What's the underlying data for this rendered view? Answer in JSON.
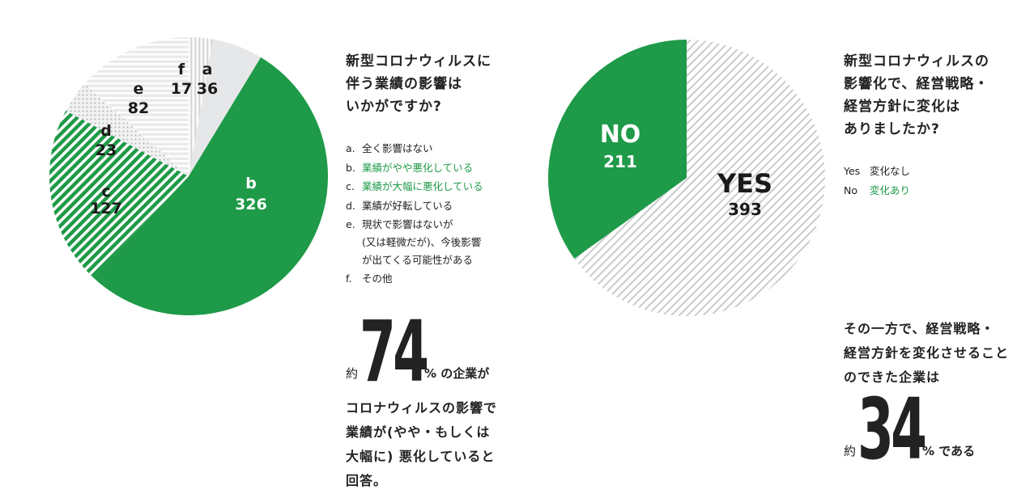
{
  "left": {
    "question": "新型コロナウィルスに\n伴う業績の影響は\nいかがですか?",
    "options": [
      {
        "key": "a.",
        "text": "全く影響はない",
        "highlight": false
      },
      {
        "key": "b.",
        "text": "業績がやや悪化している",
        "highlight": true
      },
      {
        "key": "c.",
        "text": "業績が大幅に悪化している",
        "highlight": true
      },
      {
        "key": "d.",
        "text": "業績が好転している",
        "highlight": false
      },
      {
        "key": "e.",
        "text": "現状で影響はないが\n(又は軽微だが)、今後影響\nが出てくる可能性がある",
        "highlight": false
      },
      {
        "key": "f.",
        "text": "その他",
        "highlight": false
      }
    ],
    "stat_prefix": "約",
    "stat_value": "74",
    "stat_suffix": "% の企業が",
    "stat_desc": "コロナウィルスの影響で\n業績が(やや・もしくは\n大幅に) 悪化していると\n回答。"
  },
  "right": {
    "question": "新型コロナウィルスの\n影響化で、経営戦略・\n経営方針に変化は\nありましたか?",
    "legend": [
      {
        "key": "Yes",
        "text": "変化なし",
        "highlight": false
      },
      {
        "key": "No",
        "text": "変化あり",
        "highlight": true
      }
    ],
    "stat_intro": "その一方で、経営戦略・\n経営方針を変化させること\nのできた企業は",
    "stat_prefix": "約",
    "stat_value": "34",
    "stat_suffix": "% である"
  },
  "chart_data": [
    {
      "type": "pie",
      "slices": [
        {
          "label": "a",
          "value": 36,
          "value_text": "36",
          "pattern": "solid-light"
        },
        {
          "label": "b",
          "value": 326,
          "value_text": "326",
          "pattern": "solid-green"
        },
        {
          "label": "c",
          "value": 127,
          "value_text": "127",
          "pattern": "green-diagonal"
        },
        {
          "label": "d",
          "value": 23,
          "value_text": "23",
          "pattern": "dots"
        },
        {
          "label": "e",
          "value": 82,
          "value_text": "82",
          "pattern": "horizontal-lines"
        },
        {
          "label": "f",
          "value": 17,
          "value_text": "17",
          "pattern": "vertical-lines"
        }
      ]
    },
    {
      "type": "pie",
      "slices": [
        {
          "label": "YES",
          "value": 393,
          "value_text": "393",
          "pattern": "gray-diagonal"
        },
        {
          "label": "NO",
          "value": 211,
          "value_text": "211",
          "pattern": "solid-green"
        }
      ]
    }
  ],
  "colors": {
    "green": "#1e9a48",
    "light": "#e6e7e9",
    "stripe": "#c9cbcd"
  }
}
